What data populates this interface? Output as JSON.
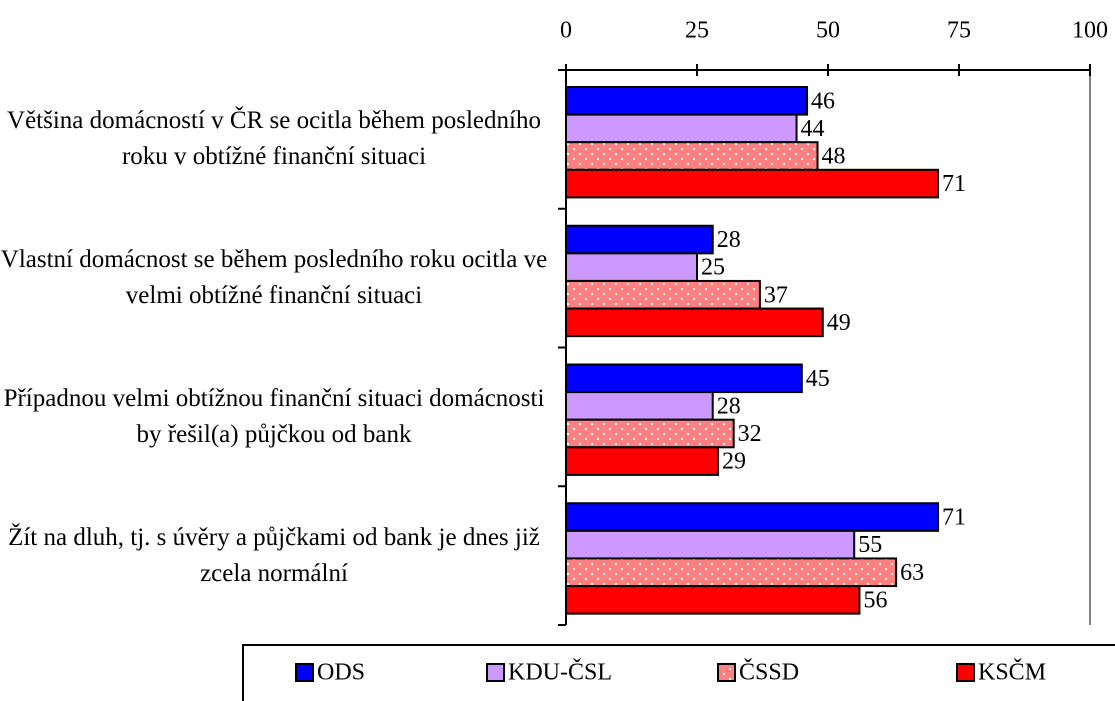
{
  "chart_data": {
    "type": "hbar",
    "categories": [
      "Většina domácností v ČR se ocitla během posledního roku v obtížné finanční situaci",
      "Vlastní domácnost se během posledního roku ocitla ve velmi obtížné finanční situaci",
      "Případnou velmi obtížnou finanční situaci domácnosti by řešil(a) půjčkou od bank",
      "Žít na dluh, tj. s úvěry a půjčkami od bank je dnes již zcela normální"
    ],
    "series": [
      {
        "name": "ODS",
        "color": "#0000ff",
        "values": [
          46,
          28,
          45,
          71
        ]
      },
      {
        "name": "KDU-ČSL",
        "color": "#cc99ff",
        "values": [
          44,
          25,
          28,
          55
        ]
      },
      {
        "name": "ČSSD",
        "color": "#ff8080",
        "pattern": "dots",
        "values": [
          48,
          37,
          32,
          63
        ]
      },
      {
        "name": "KSČM",
        "color": "#ff0000",
        "values": [
          71,
          49,
          29,
          56
        ]
      }
    ],
    "xlim": [
      0,
      100
    ],
    "xticks": [
      0,
      25,
      50,
      75,
      100
    ],
    "legend": "bottom"
  }
}
